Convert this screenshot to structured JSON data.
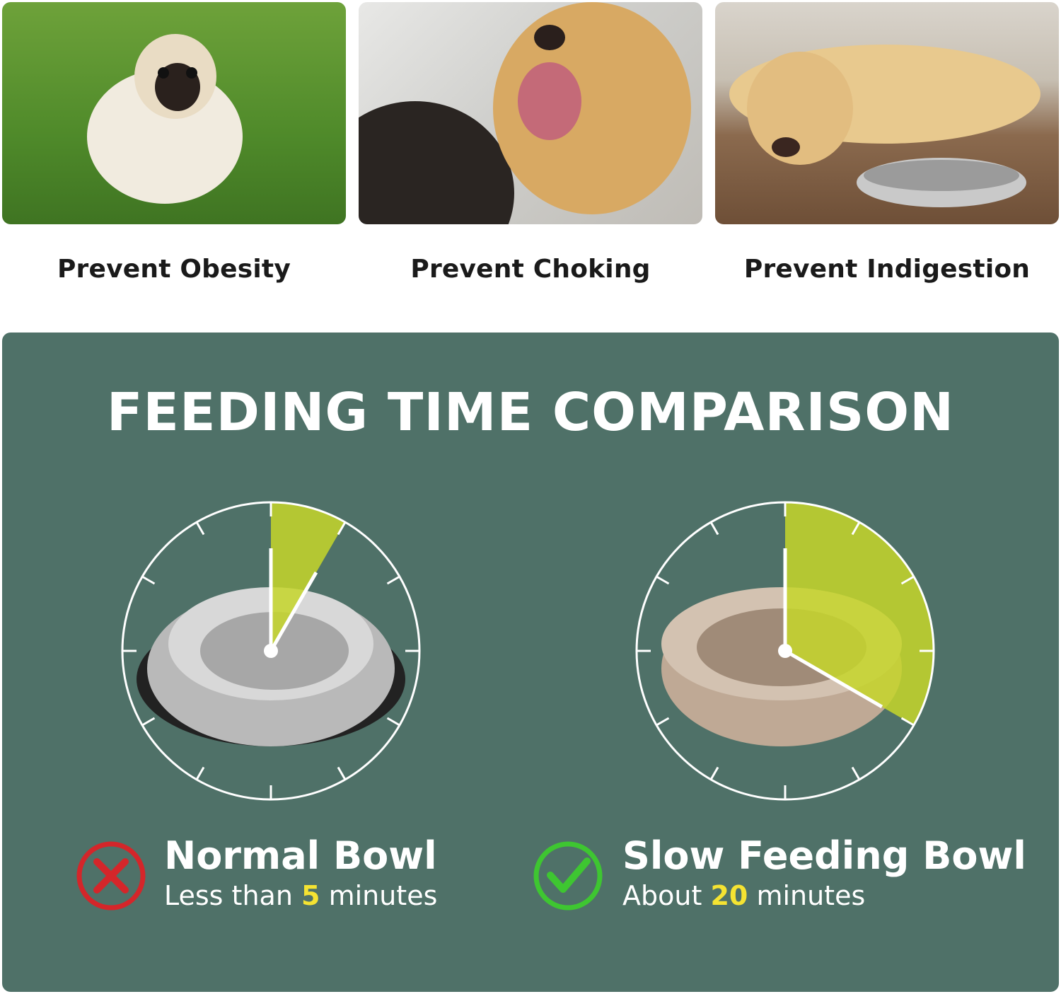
{
  "benefits": [
    {
      "label": "Prevent Obesity",
      "image": "pug on grass"
    },
    {
      "label": "Prevent Choking",
      "image": "golden retriever mouth check"
    },
    {
      "label": "Prevent Indigestion",
      "image": "labrador lying by bowl"
    }
  ],
  "comparison": {
    "title": "FEEDING TIME COMPARISON",
    "normal": {
      "name": "Normal Bowl",
      "prefix": "Less than",
      "value": "5",
      "suffix": "minutes",
      "minutes": 5,
      "icon": "red-x-circle-icon"
    },
    "slow": {
      "name": "Slow Feeding Bowl",
      "prefix": "About",
      "value": "20",
      "suffix": "minutes",
      "minutes": 20,
      "icon": "green-check-circle-icon"
    }
  },
  "colors": {
    "panel": "#4f7168",
    "wedge": "#c6d62a",
    "highlight": "#f5e332",
    "cross": "#d4262a",
    "check": "#3ec631"
  }
}
